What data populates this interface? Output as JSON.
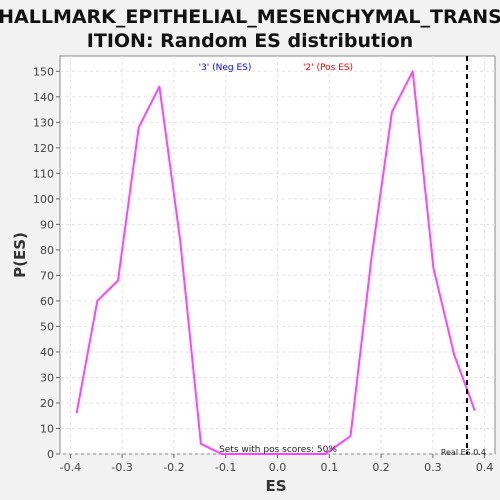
{
  "chart_data": {
    "type": "line",
    "title_line1": "HALLMARK_EPITHELIAL_MESENCHYMAL_TRANS",
    "title_line2": "ITION: Random ES distribution",
    "xlabel": "ES",
    "ylabel": "P(ES)",
    "xlim": [
      -0.42,
      0.42
    ],
    "ylim": [
      0,
      156
    ],
    "xticks": [
      -0.4,
      -0.3,
      -0.2,
      -0.1,
      0.0,
      0.1,
      0.2,
      0.3,
      0.4
    ],
    "xtick_labels": [
      "-0.4",
      "-0.3",
      "-0.2",
      "-0.1",
      "0.0",
      "0.1",
      "0.2",
      "0.3",
      "0.4"
    ],
    "yticks": [
      0,
      10,
      20,
      30,
      40,
      50,
      60,
      70,
      80,
      90,
      100,
      110,
      120,
      130,
      140,
      150
    ],
    "ytick_labels": [
      "0",
      "10",
      "20",
      "30",
      "40",
      "50",
      "60",
      "70",
      "80",
      "90",
      "100",
      "110",
      "120",
      "130",
      "140",
      "150"
    ],
    "grid": true,
    "series": [
      {
        "color": "#ff44ff",
        "x": [
          -0.388,
          -0.348,
          -0.308,
          -0.268,
          -0.228,
          -0.188,
          -0.148,
          -0.108,
          -0.068,
          -0.028,
          0.012,
          0.052,
          0.092,
          0.141,
          0.181,
          0.221,
          0.261,
          0.301,
          0.341,
          0.381
        ],
        "y": [
          16,
          60,
          68,
          128,
          144,
          84,
          4,
          0,
          0,
          0,
          0,
          0,
          0,
          7,
          76,
          134,
          150,
          73,
          39,
          17
        ]
      }
    ],
    "legend": [
      {
        "label": "'3' (Neg ES)",
        "color": "#0000ff"
      },
      {
        "label": "'2' (Pos ES)",
        "color": "#ff0000"
      }
    ],
    "real_es": 0.366,
    "real_es_label": "Real ES 0.4",
    "annotation": "Sets with pos scores: 50%"
  }
}
